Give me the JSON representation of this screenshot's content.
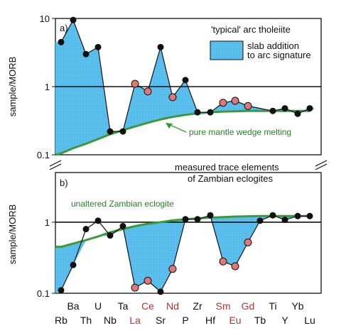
{
  "chart_data": [
    {
      "id": "a",
      "type": "line",
      "panel_label": "a)",
      "ylabel": "sample/MORB",
      "yscale": "log",
      "ylim": [
        0.1,
        10
      ],
      "yticks": [
        {
          "value": 10,
          "label": "10"
        },
        {
          "value": 1,
          "label": "1"
        },
        {
          "value": 0.1,
          "label": "0.1"
        }
      ],
      "reference_line": 1,
      "title": "'typical' arc tholeiite",
      "legend": {
        "label_line1": "slab addition",
        "label_line2": "to arc signature"
      },
      "series": [
        {
          "name": "'typical' arc tholeiite",
          "values": [
            4.5,
            9.5,
            3.0,
            3.8,
            0.22,
            0.22,
            1.1,
            0.85,
            3.8,
            0.7,
            1.25,
            0.42,
            0.42,
            0.58,
            0.62,
            0.52,
            0.44,
            0.48,
            0.4,
            0.48
          ]
        },
        {
          "name": "pure mantle wedge melting",
          "values": [
            0.105,
            0.125,
            0.145,
            0.17,
            0.2,
            0.23,
            0.26,
            0.295,
            0.33,
            0.36,
            0.385,
            0.405,
            0.42,
            0.43,
            0.435,
            0.44,
            0.44,
            0.44,
            0.44,
            0.44
          ]
        }
      ],
      "annotation": "pure mantle wedge melting"
    },
    {
      "id": "b",
      "type": "line",
      "panel_label": "b)",
      "title_line1": "measured trace elements",
      "title_line2": "of Zambian eclogites",
      "ylabel": "sample/MORB",
      "yscale": "log",
      "ylim": [
        0.1,
        5
      ],
      "yticks": [
        {
          "value": 1,
          "label": "1"
        },
        {
          "value": 0.1,
          "label": "0.1"
        }
      ],
      "reference_line": 1,
      "series": [
        {
          "name": "measured trace elements",
          "values": [
            0.11,
            0.25,
            0.8,
            1.05,
            0.65,
            0.88,
            0.12,
            0.15,
            0.105,
            0.22,
            1.1,
            1.1,
            1.25,
            0.28,
            0.24,
            0.52,
            1.05,
            1.25,
            1.08,
            1.22,
            1.22
          ]
        },
        {
          "name": "unaltered Zambian eclogite",
          "values": [
            0.45,
            0.5,
            0.56,
            0.63,
            0.72,
            0.8,
            0.88,
            0.95,
            1.0,
            1.06,
            1.1,
            1.13,
            1.16,
            1.18,
            1.2,
            1.21,
            1.22,
            1.22,
            1.22,
            1.22,
            1.22
          ]
        }
      ],
      "annotation": "unaltered Zambian eclogite"
    }
  ],
  "x_elements_top": [
    "Ba",
    "U",
    "Ta",
    "Ce",
    "Nd",
    "Zr",
    "Sm",
    "Gd",
    "Ti",
    "Yb"
  ],
  "x_elements_bottom": [
    "Rb",
    "Th",
    "Nb",
    "La",
    "Sr",
    "P",
    "Hf",
    "Eu",
    "Tb",
    "Y",
    "Lu"
  ],
  "ree_red_elements": [
    "La",
    "Ce",
    "Nd",
    "Sm",
    "Eu",
    "Gd"
  ],
  "colors": {
    "fill": "#5bc0ee",
    "green": "#3a9a3a",
    "red_point": "#e07878",
    "red_label": "#c0302a",
    "black": "#111111"
  }
}
